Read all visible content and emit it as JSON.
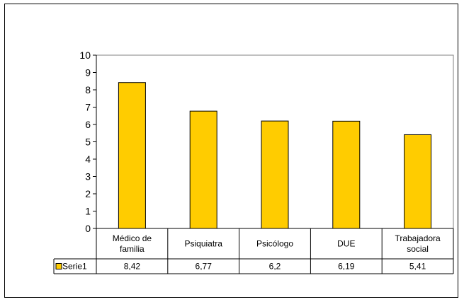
{
  "chart_data": {
    "type": "bar",
    "categories": [
      [
        "Médico de",
        "familia"
      ],
      [
        "Psiquiatra"
      ],
      [
        "Psicólogo"
      ],
      [
        "DUE"
      ],
      [
        "Trabajadora",
        "social"
      ]
    ],
    "series": [
      {
        "name": "Serie1",
        "values": [
          8.42,
          6.77,
          6.2,
          6.19,
          5.41
        ],
        "color": "#FFCC00",
        "value_labels": [
          "8,42",
          "6,77",
          "6,2",
          "6,19",
          "5,41"
        ]
      }
    ],
    "ylim": [
      0,
      10
    ],
    "yticks": [
      "0",
      "1",
      "2",
      "3",
      "4",
      "5",
      "6",
      "7",
      "8",
      "9",
      "10"
    ],
    "grid": false,
    "legend": "data-table",
    "title": "",
    "xlabel": "",
    "ylabel": ""
  }
}
